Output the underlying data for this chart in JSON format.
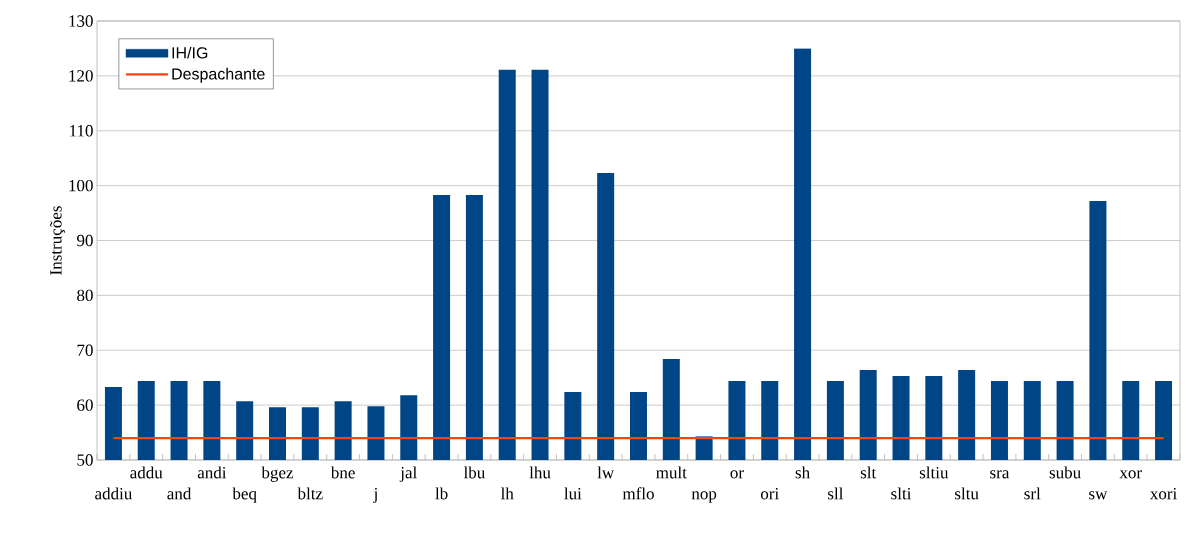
{
  "chart_data": {
    "type": "bar",
    "ylabel": "Instruções",
    "categories": [
      "addiu",
      "addu",
      "and",
      "andi",
      "beq",
      "bgez",
      "bltz",
      "bne",
      "j",
      "jal",
      "lb",
      "lbu",
      "lh",
      "lhu",
      "lui",
      "lw",
      "mflo",
      "mult",
      "nop",
      "or",
      "ori",
      "sh",
      "sll",
      "slt",
      "slti",
      "sltiu",
      "sltu",
      "sra",
      "srl",
      "subu",
      "sw",
      "xor",
      "xori"
    ],
    "series": [
      {
        "name": "IH/IG",
        "color": "#004586",
        "values": [
          63.3,
          64.4,
          64.4,
          64.4,
          60.7,
          59.6,
          59.6,
          60.7,
          59.8,
          61.8,
          98.3,
          98.3,
          121.1,
          121.1,
          62.4,
          102.3,
          62.4,
          68.4,
          54.3,
          64.4,
          64.4,
          125.0,
          64.4,
          66.4,
          65.3,
          65.3,
          66.4,
          64.4,
          64.4,
          64.4,
          97.2,
          64.4,
          64.4
        ]
      },
      {
        "name": "Despachante",
        "type": "line",
        "color": "#ff420e",
        "values": [
          54,
          54,
          54,
          54,
          54,
          54,
          54,
          54,
          54,
          54,
          54,
          54,
          54,
          54,
          54,
          54,
          54,
          54,
          54,
          54,
          54,
          54,
          54,
          54,
          54,
          54,
          54,
          54,
          54,
          54,
          54,
          54,
          54
        ]
      }
    ],
    "ylim": [
      50,
      130
    ],
    "yticks": [
      50,
      60,
      70,
      80,
      90,
      100,
      110,
      120,
      130
    ],
    "grid": "y",
    "legend": "top left"
  }
}
